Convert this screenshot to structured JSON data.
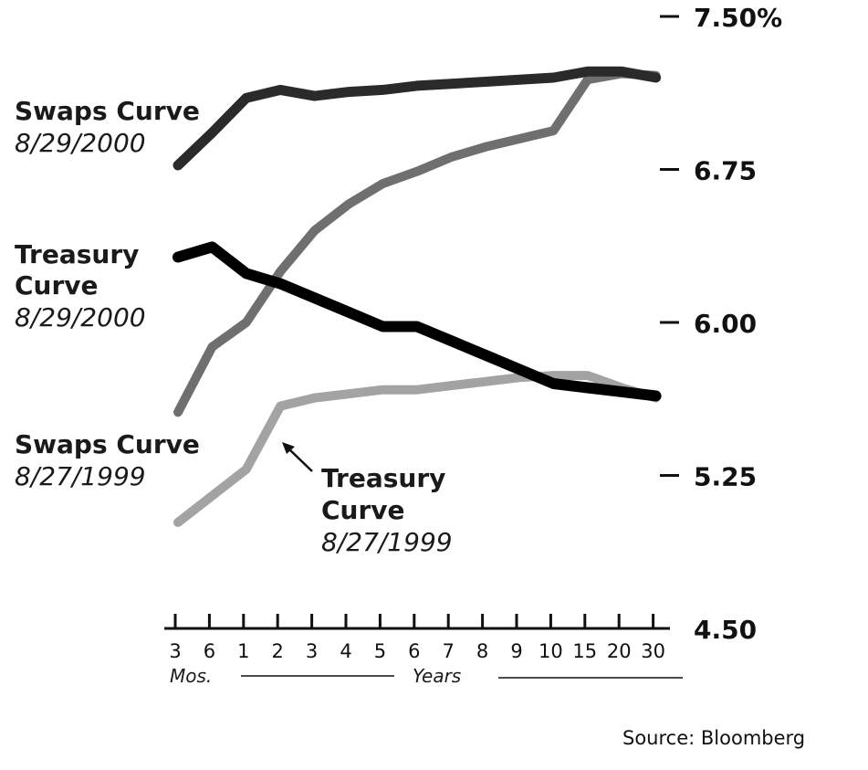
{
  "chart_data": {
    "type": "line",
    "source": "Source: Bloomberg",
    "x_label_months": "Mos.",
    "x_label_years": "Years",
    "categories": [
      "3",
      "6",
      "1",
      "2",
      "3",
      "4",
      "5",
      "6",
      "7",
      "8",
      "9",
      "10",
      "15",
      "20",
      "30"
    ],
    "y_ticks": [
      "7.50%",
      "6.75",
      "6.00",
      "5.25",
      "4.50"
    ],
    "y_tick_values": [
      7.5,
      6.75,
      6.0,
      5.25,
      4.5
    ],
    "ylim": [
      4.5,
      7.5
    ],
    "grid": false,
    "series": [
      {
        "name": "swaps_2000",
        "label_lines": [
          "Swaps Curve"
        ],
        "label_date": "8/29/2000",
        "color": "#2a2a2a",
        "values": [
          6.77,
          6.93,
          7.1,
          7.14,
          7.11,
          7.13,
          7.14,
          7.16,
          7.17,
          7.18,
          7.19,
          7.2,
          7.23,
          7.23,
          7.2
        ]
      },
      {
        "name": "treasury_2000",
        "label_lines": [
          "Treasury",
          "Curve"
        ],
        "label_date": "8/29/2000",
        "color": "#000000",
        "values": [
          6.32,
          6.37,
          6.24,
          6.19,
          6.12,
          6.05,
          5.98,
          5.98,
          5.91,
          5.84,
          5.77,
          5.7,
          5.68,
          5.66,
          5.64
        ]
      },
      {
        "name": "swaps_1999",
        "label_lines": [
          "Swaps Curve"
        ],
        "label_date": "8/27/1999",
        "color": "#6f6f6f",
        "values": [
          5.56,
          5.88,
          6.0,
          6.25,
          6.45,
          6.58,
          6.68,
          6.74,
          6.81,
          6.86,
          6.9,
          6.94,
          7.19,
          7.22,
          7.21
        ]
      },
      {
        "name": "treasury_1999",
        "label_lines": [
          "Treasury",
          "Curve"
        ],
        "label_date": "8/27/1999",
        "color": "#a3a3a3",
        "values": [
          5.02,
          5.15,
          5.28,
          5.59,
          5.63,
          5.65,
          5.67,
          5.67,
          5.69,
          5.71,
          5.73,
          5.74,
          5.74,
          5.68,
          5.63
        ]
      }
    ]
  }
}
